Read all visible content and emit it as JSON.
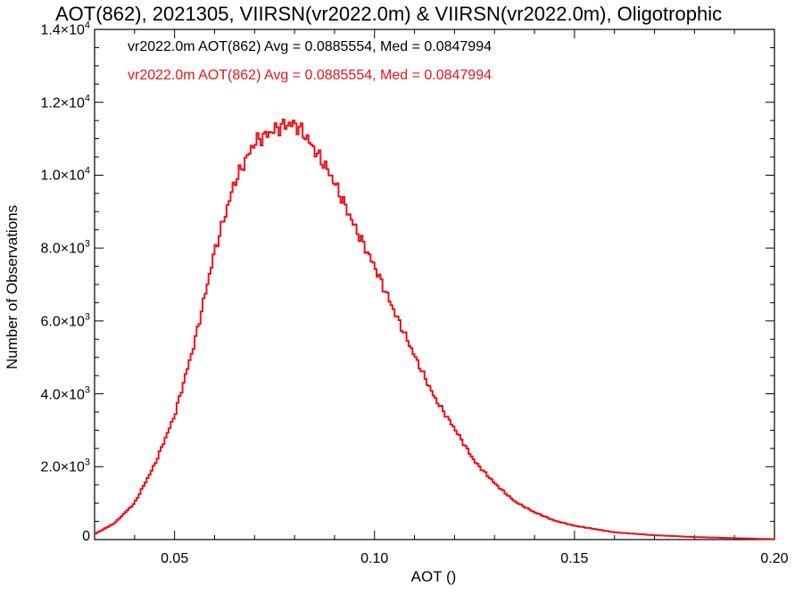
{
  "chart_data": {
    "type": "line",
    "title": "AOT(862), 2021305, VIIRSN(vr2022.0m) & VIIRSN(vr2022.0m), Oligotrophic",
    "xlabel": "AOT ()",
    "ylabel": "Number of Observations",
    "xlim": [
      0.03,
      0.2
    ],
    "ylim": [
      0,
      14000
    ],
    "x_ticks": [
      {
        "value": 0.05,
        "label": "0.05"
      },
      {
        "value": 0.1,
        "label": "0.10"
      },
      {
        "value": 0.15,
        "label": "0.15"
      },
      {
        "value": 0.2,
        "label": "0.20"
      }
    ],
    "y_ticks": [
      {
        "value": 0,
        "mant": "0",
        "exp": ""
      },
      {
        "value": 2000,
        "mant": "2.0×10",
        "exp": "3"
      },
      {
        "value": 4000,
        "mant": "4.0×10",
        "exp": "3"
      },
      {
        "value": 6000,
        "mant": "6.0×10",
        "exp": "3"
      },
      {
        "value": 8000,
        "mant": "8.0×10",
        "exp": "3"
      },
      {
        "value": 10000,
        "mant": "1.0×10",
        "exp": "4"
      },
      {
        "value": 12000,
        "mant": "1.2×10",
        "exp": "4"
      },
      {
        "value": 14000,
        "mant": "1.4×10",
        "exp": "4"
      }
    ],
    "annotations": [
      "vr2022.0m AOT(862) Avg = 0.0885554, Med = 0.0847994",
      "vr2022.0m AOT(862) Avg = 0.0885554, Med = 0.0847994"
    ],
    "series": [
      {
        "color": "#e8141b",
        "style": "step",
        "x": [
          0.03,
          0.035,
          0.04,
          0.045,
          0.05,
          0.055,
          0.06,
          0.065,
          0.07,
          0.075,
          0.078,
          0.08,
          0.082,
          0.085,
          0.088,
          0.09,
          0.095,
          0.1,
          0.105,
          0.11,
          0.115,
          0.12,
          0.125,
          0.13,
          0.135,
          0.14,
          0.145,
          0.15,
          0.16,
          0.17,
          0.18,
          0.19,
          0.2
        ],
        "y": [
          150,
          450,
          1000,
          2050,
          3400,
          5400,
          7900,
          9800,
          10900,
          11250,
          11400,
          11400,
          11200,
          10700,
          10200,
          9800,
          8600,
          7500,
          6250,
          5050,
          3900,
          3050,
          2150,
          1550,
          1050,
          750,
          520,
          380,
          200,
          120,
          70,
          40,
          10
        ]
      }
    ],
    "grid": false,
    "legend": "none"
  },
  "colors": {
    "series": "#e8141b",
    "annotation_1": "#000000",
    "annotation_2": "#e8141b",
    "axis": "#000000"
  }
}
